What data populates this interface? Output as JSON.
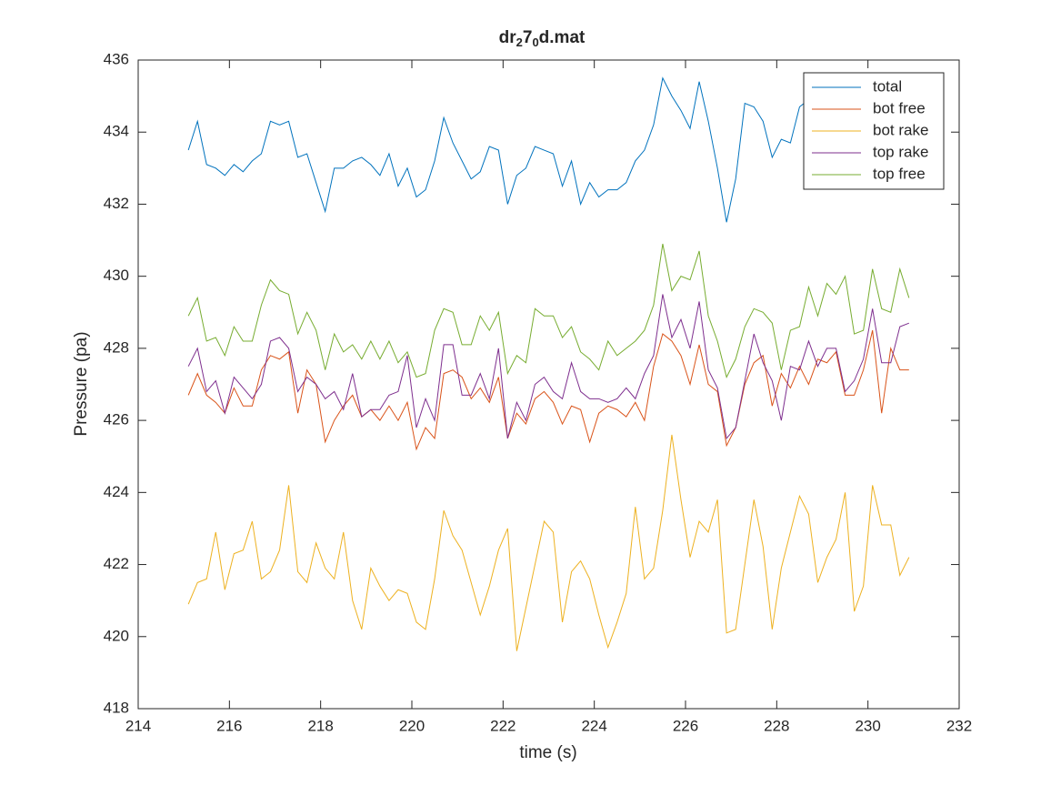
{
  "chart_data": {
    "type": "line",
    "title": [
      "dr",
      "2",
      "7",
      "0",
      "d.mat"
    ],
    "xlabel": "time (s)",
    "ylabel": "Pressure (pa)",
    "xlim": [
      214,
      232
    ],
    "xticks": [
      214,
      216,
      218,
      220,
      222,
      224,
      226,
      228,
      230,
      232
    ],
    "ylim": [
      418,
      436
    ],
    "yticks": [
      418,
      420,
      422,
      424,
      426,
      428,
      430,
      432,
      434,
      436
    ],
    "grid": false,
    "legend": "northeast",
    "x": [
      215.1,
      215.3,
      215.5,
      215.7,
      215.9,
      216.1,
      216.3,
      216.5,
      216.7,
      216.9,
      217.1,
      217.3,
      217.5,
      217.7,
      217.9,
      218.1,
      218.3,
      218.5,
      218.7,
      218.9,
      219.1,
      219.3,
      219.5,
      219.7,
      219.9,
      220.1,
      220.3,
      220.5,
      220.7,
      220.9,
      221.1,
      221.3,
      221.5,
      221.7,
      221.9,
      222.1,
      222.3,
      222.5,
      222.7,
      222.9,
      223.1,
      223.3,
      223.5,
      223.7,
      223.9,
      224.1,
      224.3,
      224.5,
      224.7,
      224.9,
      225.1,
      225.3,
      225.5,
      225.7,
      225.9,
      226.1,
      226.3,
      226.5,
      226.7,
      226.9,
      227.1,
      227.3,
      227.5,
      227.7,
      227.9,
      228.1,
      228.3,
      228.5,
      228.7,
      228.9,
      229.1,
      229.3,
      229.5,
      229.7,
      229.9,
      230.1,
      230.3,
      230.5,
      230.7,
      230.9
    ],
    "series": [
      {
        "name": "total",
        "color": "#0072BD",
        "values": [
          433.5,
          434.3,
          433.1,
          433.0,
          432.8,
          433.1,
          432.9,
          433.2,
          433.4,
          434.3,
          434.2,
          434.3,
          433.3,
          433.4,
          432.6,
          431.8,
          433.0,
          433.0,
          433.2,
          433.3,
          433.1,
          432.8,
          433.4,
          432.5,
          433.0,
          432.2,
          432.4,
          433.2,
          434.4,
          433.7,
          433.2,
          432.7,
          432.9,
          433.6,
          433.5,
          432.0,
          432.8,
          433.0,
          433.6,
          433.5,
          433.4,
          432.5,
          433.2,
          432.0,
          432.6,
          432.2,
          432.4,
          432.4,
          432.6,
          433.2,
          433.5,
          434.2,
          435.5,
          435.0,
          434.6,
          434.1,
          435.4,
          434.3,
          433.0,
          431.5,
          432.7,
          434.8,
          434.7,
          434.3,
          433.3,
          433.8,
          433.7,
          434.7,
          434.9,
          434.6,
          434.6,
          434.2,
          434.9,
          434.4,
          434.7,
          435.0,
          434.3,
          434.6,
          434.8,
          434.5
        ]
      },
      {
        "name": "bot free",
        "color": "#D95319",
        "values": [
          426.7,
          427.3,
          426.7,
          426.5,
          426.2,
          426.9,
          426.4,
          426.4,
          427.4,
          427.8,
          427.7,
          427.9,
          426.2,
          427.4,
          427.0,
          425.4,
          426.0,
          426.4,
          426.7,
          426.1,
          426.3,
          426.0,
          426.4,
          426.0,
          426.5,
          425.2,
          425.8,
          425.5,
          427.3,
          427.4,
          427.2,
          426.6,
          426.9,
          426.5,
          427.2,
          425.5,
          426.2,
          425.9,
          426.6,
          426.8,
          426.5,
          425.9,
          426.4,
          426.3,
          425.4,
          426.2,
          426.4,
          426.3,
          426.1,
          426.5,
          426.0,
          427.5,
          428.4,
          428.2,
          427.8,
          427.0,
          428.1,
          427.0,
          426.8,
          425.3,
          425.8,
          427.0,
          427.6,
          427.8,
          426.4,
          427.3,
          426.9,
          427.5,
          427.0,
          427.7,
          427.6,
          427.9,
          426.7,
          426.7,
          427.4,
          428.5,
          426.2,
          428.0,
          427.4,
          427.4
        ]
      },
      {
        "name": "bot rake",
        "color": "#EDB120",
        "values": [
          420.9,
          421.5,
          421.6,
          422.9,
          421.3,
          422.3,
          422.4,
          423.2,
          421.6,
          421.8,
          422.4,
          424.2,
          421.8,
          421.5,
          422.6,
          421.9,
          421.6,
          422.9,
          421.0,
          420.2,
          421.9,
          421.4,
          421.0,
          421.3,
          421.2,
          420.4,
          420.2,
          421.6,
          423.5,
          422.8,
          422.4,
          421.5,
          420.6,
          421.4,
          422.4,
          423.0,
          419.6,
          420.8,
          422.0,
          423.2,
          422.9,
          420.4,
          421.8,
          422.1,
          421.6,
          420.6,
          419.7,
          420.4,
          421.2,
          423.6,
          421.6,
          421.9,
          423.5,
          425.6,
          423.8,
          422.2,
          423.2,
          422.9,
          423.8,
          420.1,
          420.2,
          422.0,
          423.8,
          422.5,
          420.2,
          421.9,
          422.9,
          423.9,
          423.4,
          421.5,
          422.2,
          422.7,
          424.0,
          420.7,
          421.4,
          424.2,
          423.1,
          423.1,
          421.7,
          422.2
        ]
      },
      {
        "name": "top rake",
        "color": "#7E2F8E",
        "values": [
          427.5,
          428.0,
          426.8,
          427.1,
          426.2,
          427.2,
          426.9,
          426.6,
          427.0,
          428.2,
          428.3,
          428.0,
          426.8,
          427.2,
          427.0,
          426.6,
          426.8,
          426.3,
          427.3,
          426.1,
          426.3,
          426.3,
          426.7,
          426.8,
          427.8,
          425.8,
          426.6,
          426.0,
          428.1,
          428.1,
          426.7,
          426.7,
          427.3,
          426.6,
          428.0,
          425.5,
          426.5,
          426.0,
          427.0,
          427.2,
          426.8,
          426.6,
          427.6,
          426.8,
          426.6,
          426.6,
          426.5,
          426.6,
          426.9,
          426.6,
          427.3,
          427.8,
          429.5,
          428.3,
          428.8,
          428.0,
          429.3,
          427.4,
          426.9,
          425.5,
          425.8,
          427.1,
          428.4,
          427.6,
          427.1,
          426.0,
          427.5,
          427.4,
          428.2,
          427.5,
          428.0,
          428.0,
          426.8,
          427.1,
          427.7,
          429.1,
          427.6,
          427.6,
          428.6,
          428.7
        ]
      },
      {
        "name": "top free",
        "color": "#77AC30",
        "values": [
          428.9,
          429.4,
          428.2,
          428.3,
          427.8,
          428.6,
          428.2,
          428.2,
          429.2,
          429.9,
          429.6,
          429.5,
          428.4,
          429.0,
          428.5,
          427.4,
          428.4,
          427.9,
          428.1,
          427.7,
          428.2,
          427.7,
          428.2,
          427.6,
          427.9,
          427.2,
          427.3,
          428.5,
          429.1,
          429.0,
          428.1,
          428.1,
          428.9,
          428.5,
          429.0,
          427.3,
          427.8,
          427.6,
          429.1,
          428.9,
          428.9,
          428.3,
          428.6,
          427.9,
          427.7,
          427.4,
          428.2,
          427.8,
          428.0,
          428.2,
          428.5,
          429.2,
          430.9,
          429.6,
          430.0,
          429.9,
          430.7,
          428.9,
          428.2,
          427.2,
          427.7,
          428.6,
          429.1,
          429.0,
          428.7,
          427.4,
          428.5,
          428.6,
          429.7,
          428.9,
          429.8,
          429.5,
          430.0,
          428.4,
          428.5,
          430.2,
          429.1,
          429.0,
          430.2,
          429.4
        ]
      }
    ]
  }
}
